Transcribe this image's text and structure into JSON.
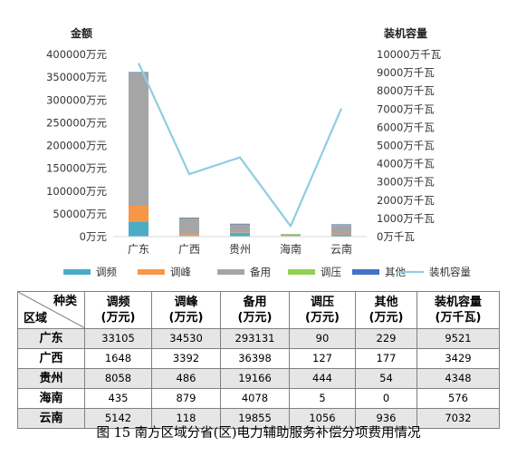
{
  "chart_data": {
    "type": "bar+line",
    "categories": [
      "广东",
      "广西",
      "贵州",
      "海南",
      "云南"
    ],
    "left_axis": {
      "title": "金额",
      "ticks": [
        "0万元",
        "50000万元",
        "100000万元",
        "150000万元",
        "200000万元",
        "250000万元",
        "300000万元",
        "350000万元",
        "400000万元"
      ],
      "range": [
        0,
        400000
      ]
    },
    "right_axis": {
      "title": "装机容量",
      "ticks": [
        "0万千瓦",
        "1000万千瓦",
        "2000万千瓦",
        "3000万千瓦",
        "4000万千瓦",
        "5000万千瓦",
        "6000万千瓦",
        "7000万千瓦",
        "8000万千瓦",
        "9000万千瓦",
        "10000万千瓦"
      ],
      "range": [
        0,
        10000
      ]
    },
    "bar_series": [
      {
        "name": "调频",
        "color": "#4bacc6",
        "values": [
          33105,
          1648,
          8058,
          435,
          5142
        ]
      },
      {
        "name": "调峰",
        "color": "#f79646",
        "values": [
          34530,
          3392,
          486,
          879,
          118
        ]
      },
      {
        "name": "备用",
        "color": "#a5a5a5",
        "values": [
          293131,
          36398,
          19166,
          4078,
          19855
        ]
      },
      {
        "name": "调压",
        "color": "#92d050",
        "values": [
          90,
          127,
          444,
          5,
          1056
        ]
      },
      {
        "name": "其他",
        "color": "#4472c4",
        "values": [
          229,
          177,
          54,
          0,
          936
        ]
      }
    ],
    "line_series": {
      "name": "装机容量",
      "color": "#8fcde0",
      "values": [
        9521,
        3429,
        4348,
        576,
        7032
      ]
    },
    "legend_position": "bottom"
  },
  "table": {
    "corner_top": "种类",
    "corner_bottom": "区域",
    "headers": [
      {
        "line1": "调频",
        "line2": "(万元)"
      },
      {
        "line1": "调峰",
        "line2": "(万元)"
      },
      {
        "line1": "备用",
        "line2": "(万元)"
      },
      {
        "line1": "调压",
        "line2": "(万元)"
      },
      {
        "line1": "其他",
        "line2": "(万元)"
      },
      {
        "line1": "装机容量",
        "line2": "(万千瓦)"
      }
    ],
    "rows": [
      {
        "region": "广东",
        "cells": [
          "33105",
          "34530",
          "293131",
          "90",
          "229",
          "9521"
        ]
      },
      {
        "region": "广西",
        "cells": [
          "1648",
          "3392",
          "36398",
          "127",
          "177",
          "3429"
        ]
      },
      {
        "region": "贵州",
        "cells": [
          "8058",
          "486",
          "19166",
          "444",
          "54",
          "4348"
        ]
      },
      {
        "region": "海南",
        "cells": [
          "435",
          "879",
          "4078",
          "5",
          "0",
          "576"
        ]
      },
      {
        "region": "云南",
        "cells": [
          "5142",
          "118",
          "19855",
          "1056",
          "936",
          "7032"
        ]
      }
    ]
  },
  "caption": "图 15 南方区域分省(区)电力辅助服务补偿分项费用情况"
}
